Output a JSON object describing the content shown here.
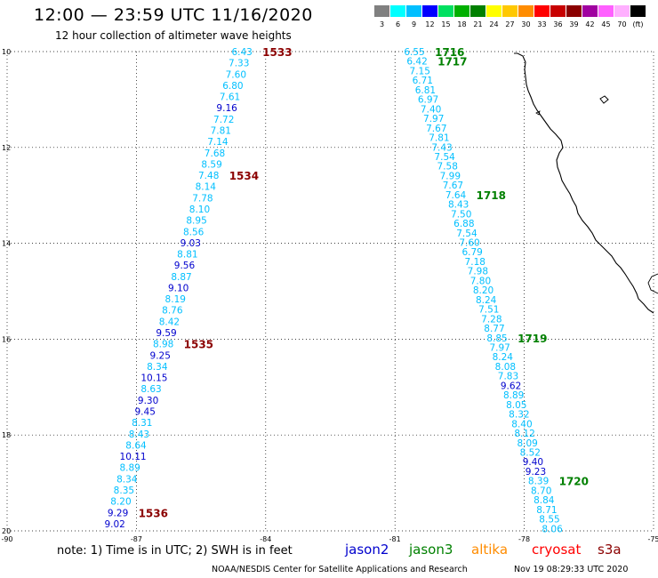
{
  "header": {
    "title": "12:00 — 23:59 UTC 11/16/2020",
    "subtitle": "12 hour collection of altimeter wave heights"
  },
  "legend": {
    "labels": [
      "3",
      "6",
      "9",
      "12",
      "15",
      "18",
      "21",
      "24",
      "27",
      "30",
      "33",
      "36",
      "39",
      "42",
      "45",
      "70",
      "(ft)"
    ],
    "colors": [
      "#808080",
      "#00ffff",
      "#00bfff",
      "#0000ff",
      "#00e060",
      "#00b000",
      "#008000",
      "#ffff00",
      "#ffc800",
      "#ff8c00",
      "#ff0000",
      "#c80000",
      "#8b0000",
      "#a000a0",
      "#ff60ff",
      "#ffb0ff",
      "#000000"
    ]
  },
  "note": "note:  1) Time is in UTC;  2) SWH is in feet",
  "satellites": [
    {
      "name": "jason2",
      "color": "#0000cd"
    },
    {
      "name": "jason3",
      "color": "#008000"
    },
    {
      "name": "altika",
      "color": "#ff8c00"
    },
    {
      "name": "cryosat",
      "color": "#ff0000"
    },
    {
      "name": "s3a",
      "color": "#8b0000"
    }
  ],
  "footer": {
    "credit": "NOAA/NESDIS Center for Satellite Applications and Research",
    "timestamp": "Nov 19 08:29:33 UTC 2020"
  },
  "axes": {
    "lat_ticks": [
      "10",
      "12",
      "14",
      "16",
      "18",
      "20"
    ],
    "lon_ticks": [
      "-90",
      "-87",
      "-84",
      "-81",
      "-78",
      "-75"
    ]
  },
  "map_data": {
    "lon_range": [
      -90,
      -75
    ],
    "lat_range": [
      10,
      20
    ],
    "lat_axis_direction": "down",
    "tracks": [
      {
        "values": [
          "6.43",
          "7.33",
          "7.60",
          "6.80",
          "7.61",
          "9.16",
          "7.72",
          "7.81",
          "7.14",
          "7.68",
          "8.59",
          "7.48",
          "8.14",
          "7.78",
          "8.10",
          "8.95",
          "8.56",
          "9.03",
          "8.81",
          "9.56",
          "8.87",
          "9.10",
          "8.19",
          "8.76",
          "8.42",
          "9.59",
          "8.98",
          "9.25",
          "8.34",
          "10.15",
          "8.63",
          "9.30",
          "9.45",
          "8.31",
          "8.43",
          "8.64",
          "10.11",
          "8.89",
          "8.34",
          "8.35",
          "8.20",
          "9.29",
          "9.02"
        ],
        "colors": [
          "c",
          "c",
          "c",
          "c",
          "c",
          "b",
          "c",
          "c",
          "c",
          "c",
          "c",
          "c",
          "c",
          "c",
          "c",
          "c",
          "c",
          "b",
          "c",
          "b",
          "c",
          "b",
          "c",
          "c",
          "c",
          "b",
          "c",
          "b",
          "c",
          "b",
          "c",
          "b",
          "b",
          "c",
          "c",
          "c",
          "b",
          "c",
          "c",
          "c",
          "c",
          "b",
          "b"
        ],
        "start": [
          -84.55,
          10.0
        ],
        "end": [
          -87.5,
          19.85
        ],
        "times": [
          {
            "label": "1533",
            "index": 0
          },
          {
            "label": "1534",
            "index": 11
          },
          {
            "label": "1535",
            "index": 26
          },
          {
            "label": "1536",
            "index": 41
          }
        ],
        "time_color": "#8b0000"
      },
      {
        "values": [
          "6.55",
          "6.42",
          "7.15",
          "6.71",
          "6.81",
          "6.97",
          "7.40",
          "7.97",
          "7.67",
          "7.81",
          "7.43",
          "7.54",
          "7.58",
          "7.99",
          "7.67",
          "7.64",
          "8.43",
          "7.50",
          "6.88",
          "7.54",
          "7.60",
          "6.79",
          "7.18",
          "7.98",
          "7.80",
          "8.20",
          "8.24",
          "7.51",
          "7.28",
          "8.77",
          "8.85",
          "7.97",
          "8.24",
          "8.08",
          "7.83",
          "9.62",
          "8.89",
          "8.05",
          "8.32",
          "8.40",
          "8.12",
          "8.09",
          "8.52",
          "9.40",
          "9.23",
          "8.39",
          "8.70",
          "8.84",
          "8.71",
          "8.55",
          "8.06"
        ],
        "colors": [
          "c",
          "c",
          "c",
          "c",
          "c",
          "c",
          "c",
          "c",
          "c",
          "c",
          "c",
          "c",
          "c",
          "c",
          "c",
          "c",
          "c",
          "c",
          "c",
          "c",
          "c",
          "c",
          "c",
          "c",
          "c",
          "c",
          "c",
          "c",
          "c",
          "c",
          "c",
          "c",
          "c",
          "c",
          "c",
          "b",
          "c",
          "c",
          "c",
          "c",
          "c",
          "c",
          "c",
          "b",
          "b",
          "c",
          "c",
          "c",
          "c",
          "c",
          "c"
        ],
        "start": [
          -80.55,
          10.0
        ],
        "end": [
          -77.35,
          19.95
        ],
        "times": [
          {
            "label": "1716",
            "index": 0
          },
          {
            "label": "1717",
            "index": 1
          },
          {
            "label": "1718",
            "index": 15
          },
          {
            "label": "1719",
            "index": 30
          },
          {
            "label": "1720",
            "index": 45
          }
        ],
        "time_color": "#008000"
      }
    ]
  }
}
